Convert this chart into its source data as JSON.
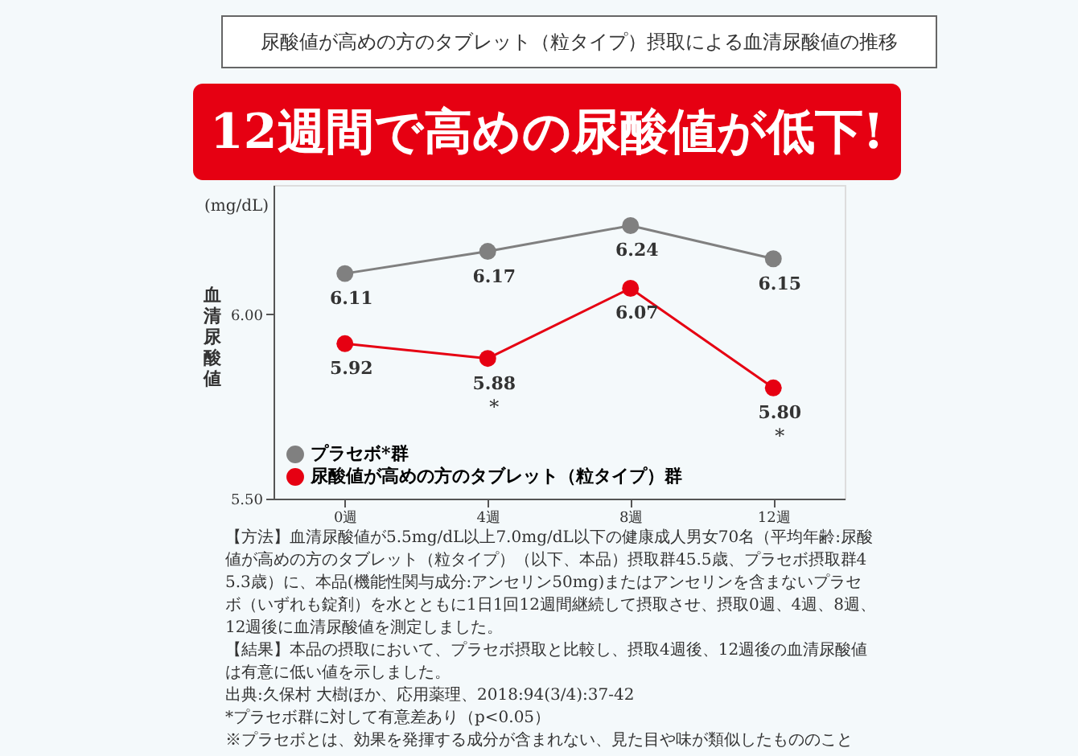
{
  "chart_data": {
    "type": "line",
    "title": "尿酸値が高めの方のタブレット（粒タイプ）摂取による血清尿酸値の推移",
    "subtitle": "12週間で高めの尿酸値が低下!",
    "ylabel": "血清尿酸値",
    "categories": [
      "0週",
      "4週",
      "8週",
      "12週"
    ],
    "series": [
      {
        "name": "プラセボ*群",
        "color": "#808080",
        "values": [
          6.11,
          6.17,
          6.24,
          6.15
        ],
        "value_labels": [
          "6.11",
          "6.17",
          "6.24",
          "6.15"
        ]
      },
      {
        "name": "尿酸値が高めの方のタブレット（粒タイプ）群",
        "color": "#e60012",
        "values": [
          5.92,
          5.88,
          6.07,
          5.8
        ],
        "value_labels": [
          "5.92",
          "5.88",
          "6.07",
          "5.80"
        ]
      }
    ],
    "ylim": [
      5.5,
      6.35
    ],
    "yticks": [
      {
        "value": 5.5,
        "label": "5.50"
      },
      {
        "value": 6.0,
        "label": "6.00"
      }
    ],
    "grid": false,
    "legend": "bottom left",
    "marker": "circle",
    "line_style": "solid",
    "annotations": [
      "(mg/dL)",
      {
        "text": "*",
        "x": "4週",
        "y": 5.88
      },
      {
        "text": "*",
        "x": "12週",
        "y": 5.8
      },
      "【方法】血清尿酸値が5.5mg/dL以上7.0mg/dL以下の健康成人男女70名（平均年齢:尿酸値が高めの方のタブレット（粒タイプ）（以下、本品）摂取群45.5歳、プラセボ摂取群45.3歳）に、本品(機能性関与成分:アンセリン50mg)またはアンセリンを含まないプラセボ（いずれも錠剤）を水とともに1日1回12週間継続して摂取させ、摂取0週、4週、8週、12週後に血清尿酸値を測定しました。",
      "【結果】本品の摂取において、プラセボ摂取と比較し、摂取4週後、12週後の血清尿酸値は有意に低い値を示しました。",
      "出典:久保村 大樹ほか、応用薬理、2018:94(3/4):37-42",
      "*プラセボ群に対して有意差あり（p<0.05）",
      "※プラセボとは、効果を発揮する成分が含まれない、見た目や味が類似したもののこと"
    ]
  }
}
